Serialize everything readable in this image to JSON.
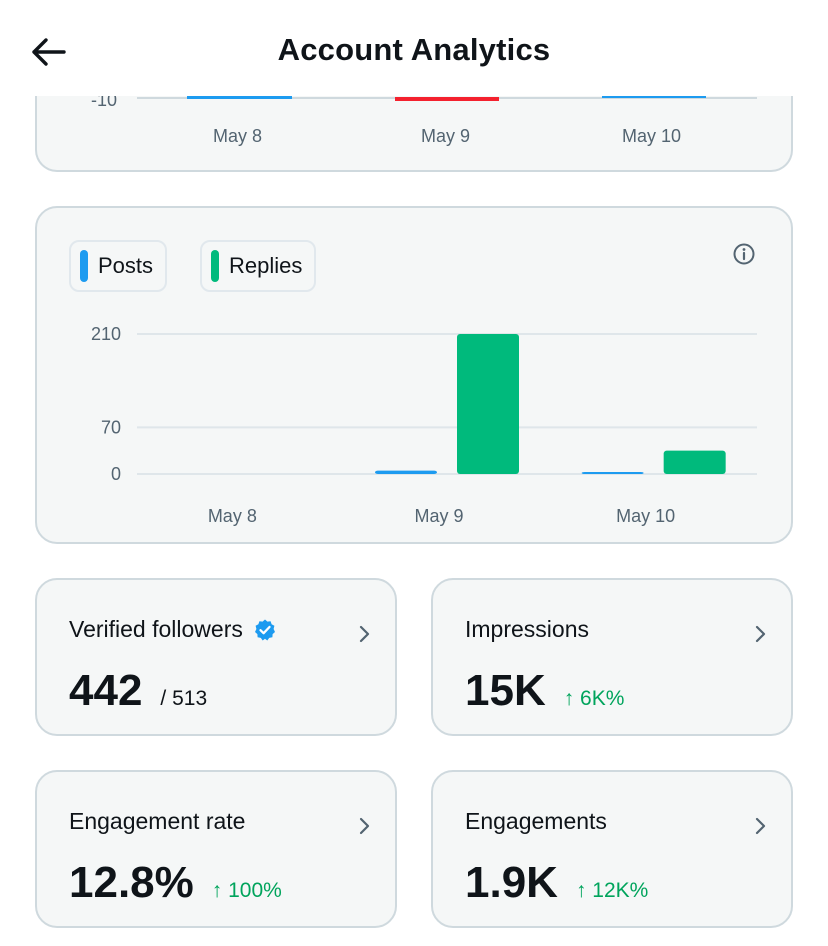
{
  "header": {
    "title": "Account Analytics",
    "back_icon": "arrow-left-icon"
  },
  "top_chart": {
    "y_tick": "-10",
    "x_labels": [
      "May 8",
      "May 9",
      "May 10"
    ],
    "colors": [
      "#1d9bf0",
      "#f4212e",
      "#1d9bf0"
    ]
  },
  "chart_data": {
    "type": "bar",
    "categories": [
      "May 8",
      "May 9",
      "May 10"
    ],
    "series": [
      {
        "name": "Posts",
        "color": "#1d9bf0",
        "values": [
          0,
          5,
          1
        ]
      },
      {
        "name": "Replies",
        "color": "#00ba7c",
        "values": [
          0,
          210,
          35
        ]
      }
    ],
    "yticks": [
      "210",
      "70",
      "0"
    ],
    "ylim": [
      0,
      210
    ],
    "grid": true,
    "legend": "top-left"
  },
  "stats": [
    {
      "label": "Verified followers",
      "value": "442",
      "sub": "/ 513",
      "change": "",
      "verified_icon": "verified-badge-icon"
    },
    {
      "label": "Impressions",
      "value": "15K",
      "sub": "",
      "change": "↑ 6K%"
    },
    {
      "label": "Engagement rate",
      "value": "12.8%",
      "sub": "",
      "change": "↑ 100%"
    },
    {
      "label": "Engagements",
      "value": "1.9K",
      "sub": "",
      "change": "↑ 12K%"
    }
  ],
  "colors": {
    "accent": "#1d9bf0",
    "positive": "#00a45c",
    "replies": "#00ba7c",
    "negative": "#f4212e"
  }
}
